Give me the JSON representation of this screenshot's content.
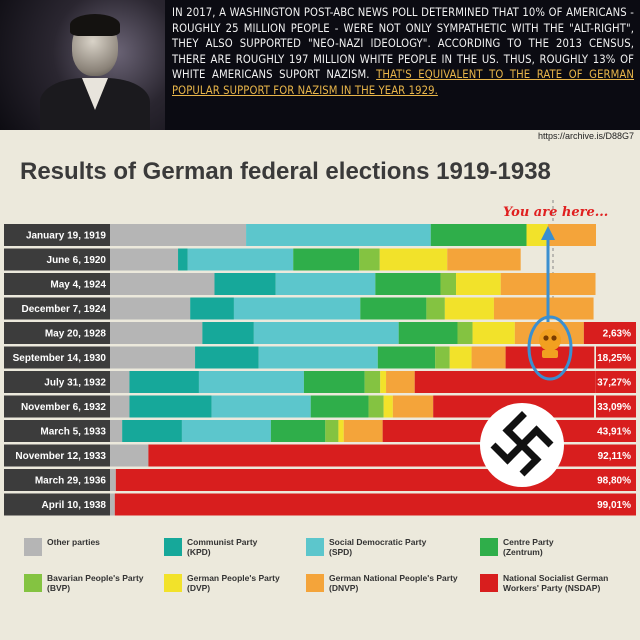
{
  "header": {
    "quote_main": "In 2017, a Washington Post-ABC News poll determined that 10% of Americans - roughly 25 million people - were not only sympathetic with the \"alt-right\", they also supported \"Neo-Nazi ideology\". According to the 2013 census, there are roughly 197 million white people in the US. Thus, roughly 13% of white Americans suport Nazism.",
    "quote_highlight": "That's equivalent to the rate of German popular support for Nazism in the year 1929.",
    "source_url": "https://archive.is/D88G7"
  },
  "colors": {
    "other": "#b5b5b5",
    "kpd": "#16a89a",
    "spd": "#5cc6cc",
    "zentrum": "#2fae4a",
    "bvp": "#84c341",
    "dvp": "#f2e22a",
    "dnvp": "#f4a43a",
    "nsdap": "#d81e1e",
    "label_bg": "#3c3c3c",
    "annotation": "#e02020",
    "arrow": "#3a8fd0"
  },
  "chart_data": {
    "type": "bar",
    "stacked": true,
    "orientation": "horizontal",
    "title": "Results of German federal elections 1919-1938",
    "categories": [
      "January 19, 1919",
      "June 6, 1920",
      "May 4, 1924",
      "December 7, 1924",
      "May 20, 1928",
      "September 14, 1930",
      "July 31, 1932",
      "November 6, 1932",
      "March 5, 1933",
      "November 12, 1933",
      "March 29, 1936",
      "April 10, 1938"
    ],
    "series": [
      {
        "name": "Other parties",
        "key": "other",
        "values": [
          28.0,
          14.0,
          21.5,
          16.5,
          19.0,
          17.5,
          4.0,
          4.0,
          2.5,
          7.9,
          1.2,
          0.99
        ]
      },
      {
        "name": "Communist Party (KPD)",
        "key": "kpd",
        "values": [
          0,
          2.0,
          12.6,
          9.0,
          10.6,
          13.1,
          14.3,
          16.9,
          12.3,
          0,
          0,
          0
        ]
      },
      {
        "name": "Social Democratic Party (SPD)",
        "key": "spd",
        "values": [
          38.0,
          21.7,
          20.5,
          26.0,
          29.8,
          24.5,
          21.6,
          20.4,
          18.3,
          0,
          0,
          0
        ]
      },
      {
        "name": "Centre Party (Zentrum)",
        "key": "zentrum",
        "values": [
          19.7,
          13.6,
          13.4,
          13.6,
          12.1,
          11.8,
          12.5,
          11.9,
          11.2,
          0,
          0,
          0
        ]
      },
      {
        "name": "Bavarian People's Party (BVP)",
        "key": "bvp",
        "values": [
          0,
          4.2,
          3.2,
          3.8,
          3.1,
          3.0,
          3.2,
          3.1,
          2.7,
          0,
          0,
          0
        ]
      },
      {
        "name": "German People's Party (DVP)",
        "key": "dvp",
        "values": [
          4.4,
          13.9,
          9.2,
          10.1,
          8.7,
          4.5,
          1.2,
          1.9,
          1.1,
          0,
          0,
          0
        ]
      },
      {
        "name": "German National People's Party (DNVP)",
        "key": "dnvp",
        "values": [
          9.9,
          15.1,
          19.5,
          20.5,
          14.2,
          7.0,
          5.9,
          8.3,
          8.0,
          0,
          0,
          0
        ]
      },
      {
        "name": "National Socialist German Workers' Party (NSDAP)",
        "key": "nsdap",
        "values": [
          0,
          0,
          0,
          0,
          2.63,
          18.25,
          37.27,
          33.09,
          43.91,
          92.11,
          98.8,
          99.01
        ]
      }
    ],
    "nsdap_labels": [
      "",
      "",
      "",
      "",
      "2,63%",
      "18,25%",
      "37,27%",
      "33,09%",
      "43,91%",
      "92,11%",
      "98,80%",
      "99,01%"
    ],
    "xlim": [
      0,
      100
    ],
    "legend": [
      {
        "key": "other",
        "label1": "Other parties",
        "label2": ""
      },
      {
        "key": "kpd",
        "label1": "Communist Party",
        "label2": "(KPD)"
      },
      {
        "key": "spd",
        "label1": "Social Democratic Party",
        "label2": "(SPD)"
      },
      {
        "key": "zentrum",
        "label1": "Centre Party",
        "label2": "(Zentrum)"
      },
      {
        "key": "bvp",
        "label1": "Bavarian People's Party",
        "label2": "(BVP)"
      },
      {
        "key": "dvp",
        "label1": "German People's Party",
        "label2": "(DVP)"
      },
      {
        "key": "dnvp",
        "label1": "German National People's Party",
        "label2": "(DNVP)"
      },
      {
        "key": "nsdap",
        "label1": "National Socialist German",
        "label2": "Workers' Party (NSDAP)"
      }
    ],
    "legend_placement": "bottom",
    "annotation": "You are here..."
  }
}
